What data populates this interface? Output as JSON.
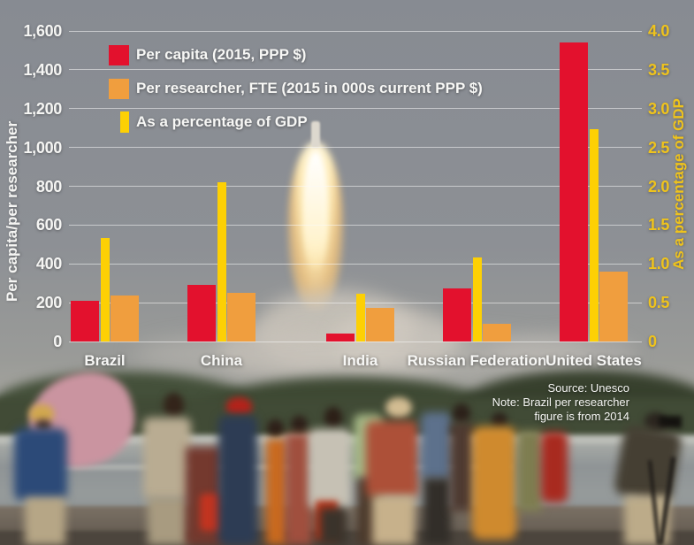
{
  "chart_data": {
    "type": "bar",
    "title": "",
    "categories": [
      "Brazil",
      "China",
      "India",
      "Russian Federation",
      "United States"
    ],
    "series": [
      {
        "name": "Per capita (2015, PPP $)",
        "axis": "left",
        "color": "#e3112d",
        "values": [
          210,
          290,
          40,
          275,
          1540
        ]
      },
      {
        "name": "Per researcher, FTE (2015 in 000s current PPP $)",
        "axis": "left",
        "color": "#f09e3e",
        "values": [
          235,
          250,
          175,
          90,
          360
        ]
      },
      {
        "name": "As a percentage of GDP",
        "axis": "right",
        "color": "#fdd004",
        "values": [
          1.33,
          2.05,
          0.62,
          1.08,
          2.74
        ]
      }
    ],
    "left_axis": {
      "label": "Per capita/per researcher",
      "min": 0,
      "max": 1600,
      "ticks": [
        "0",
        "200",
        "400",
        "600",
        "800",
        "1,000",
        "1,200",
        "1,400",
        "1,600"
      ]
    },
    "right_axis": {
      "label": "As a percentage of GDP",
      "min": 0,
      "max": 4.0,
      "ticks": [
        "0",
        "0.5",
        "1.0",
        "1.5",
        "2.0",
        "2.5",
        "3.0",
        "3.5",
        "4.0"
      ]
    },
    "legend_position": "top-left",
    "grid": true
  },
  "figure": {
    "source_note": {
      "line1": "Source: Unesco",
      "line2": "Note: Brazil per researcher",
      "line3": "figure is from 2014"
    }
  },
  "colors": {
    "per_capita_red": "#e3112d",
    "per_researcher_orange": "#f09e3e",
    "pct_gdp_yellow": "#fdd004",
    "right_axis_text": "#efc31c",
    "left_axis_text": "#f5f5f3",
    "gridline": "rgba(250,250,250,0.55)"
  }
}
